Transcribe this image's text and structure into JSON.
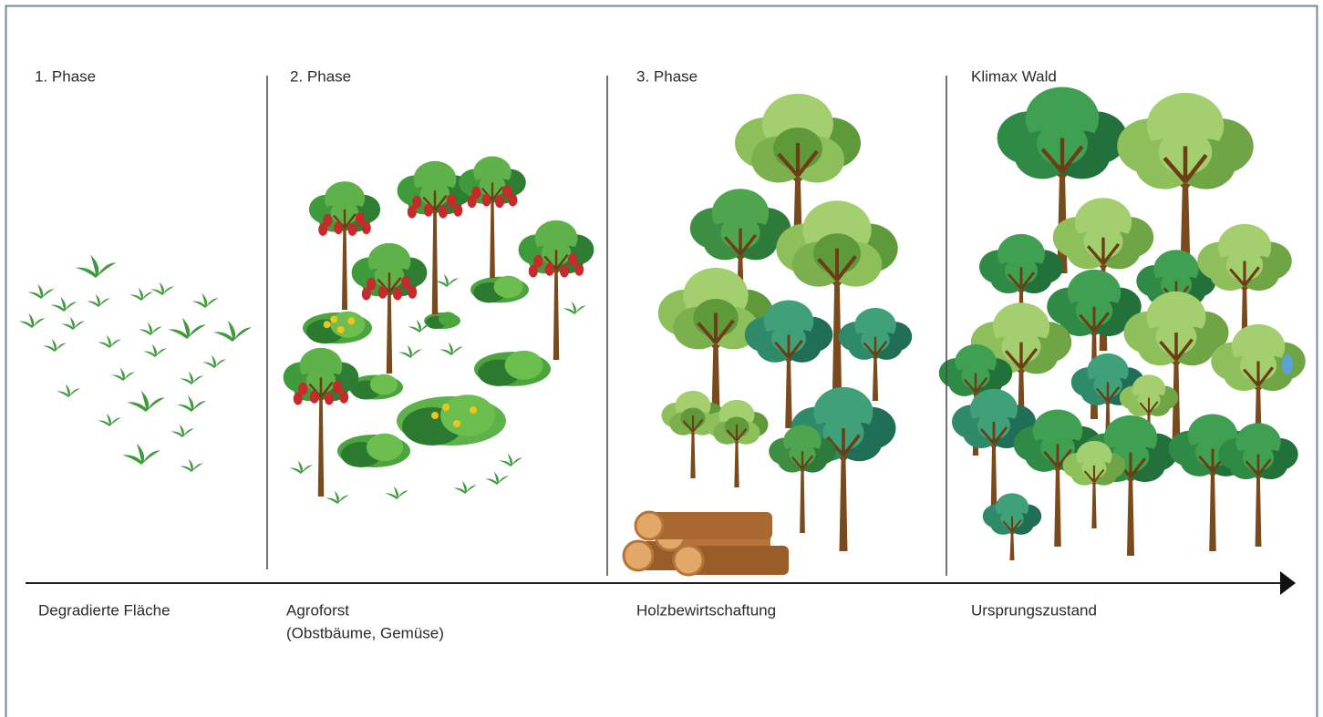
{
  "phases": [
    {
      "title": "1. Phase",
      "label": [
        "Degradierte Fläche"
      ]
    },
    {
      "title": "2. Phase",
      "label": [
        "Agroforst",
        "(Obstbäume, Gemüse)"
      ]
    },
    {
      "title": "3. Phase",
      "label": [
        "Holzbewirtschaftung"
      ]
    },
    {
      "title": "Klimax Wald",
      "label": [
        "Ursprungszustand"
      ]
    }
  ]
}
